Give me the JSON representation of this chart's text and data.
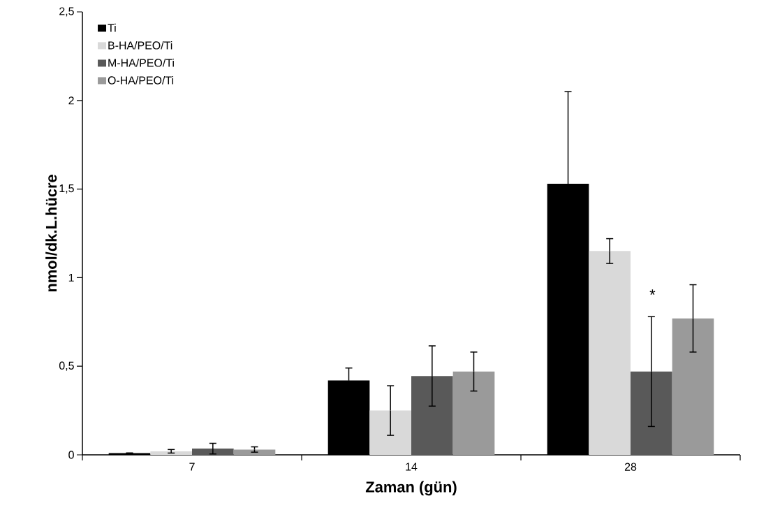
{
  "chart_data": {
    "type": "bar",
    "xlabel": "Zaman (gün)",
    "ylabel": "nmol/dk.L.hücre",
    "categories": [
      "7",
      "14",
      "28"
    ],
    "series": [
      {
        "name": "Ti",
        "color": "#000000",
        "values": [
          0.01,
          0.42,
          1.53
        ],
        "errors": [
          null,
          0.07,
          0.52
        ]
      },
      {
        "name": "B-HA/PEO/Ti",
        "color": "#d9d9d9",
        "values": [
          0.02,
          0.25,
          1.15
        ],
        "errors": [
          0.01,
          0.14,
          0.07
        ]
      },
      {
        "name": "M-HA/PEO/Ti",
        "color": "#595959",
        "values": [
          0.035,
          0.445,
          0.47
        ],
        "errors": [
          0.03,
          0.17,
          0.31
        ]
      },
      {
        "name": "O-HA/PEO/Ti",
        "color": "#9a9a9a",
        "values": [
          0.03,
          0.47,
          0.77
        ],
        "errors": [
          0.015,
          0.11,
          0.19
        ]
      }
    ],
    "ylim": [
      0,
      2.5
    ],
    "yticks": [
      0,
      {
        "value": 0.5,
        "label": "0,5"
      },
      1,
      {
        "value": 1.5,
        "label": "1,5"
      },
      2,
      {
        "value": 2.5,
        "label": "2,5"
      }
    ],
    "annotations": [
      {
        "text": "*",
        "x": "28",
        "y": 0.86
      }
    ],
    "legend": "top left",
    "grid": false
  }
}
